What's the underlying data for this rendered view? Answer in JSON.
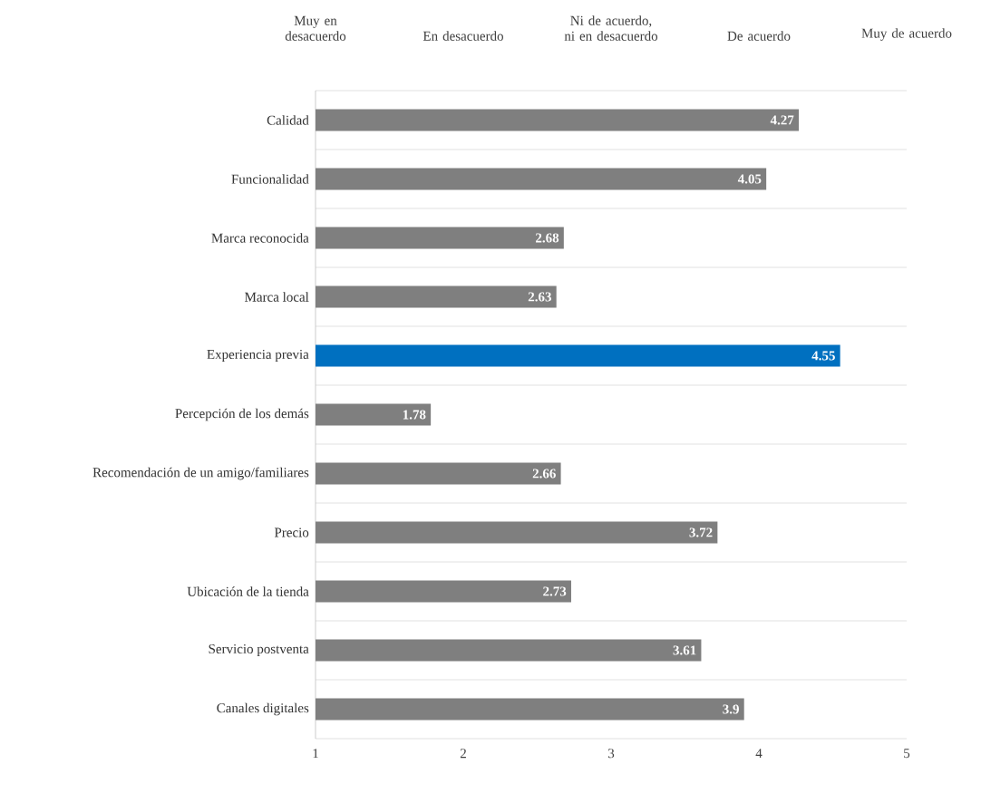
{
  "chart_data": {
    "type": "bar",
    "orientation": "horizontal",
    "categories": [
      "Calidad",
      "Funcionalidad",
      "Marca reconocida",
      "Marca local",
      "Experiencia previa",
      "Percepción de los demás",
      "Recomendación de un amigo/familiares",
      "Precio",
      "Ubicación de la tienda",
      "Servicio postventa",
      "Canales digitales"
    ],
    "values": [
      4.27,
      4.05,
      2.68,
      2.63,
      4.55,
      1.78,
      2.66,
      3.72,
      2.73,
      3.61,
      3.9
    ],
    "colors": [
      "#7f7f7f",
      "#7f7f7f",
      "#7f7f7f",
      "#7f7f7f",
      "#0070c0",
      "#7f7f7f",
      "#7f7f7f",
      "#7f7f7f",
      "#7f7f7f",
      "#7f7f7f",
      "#7f7f7f"
    ],
    "xlim": [
      1,
      5
    ],
    "xticks": [
      1,
      2,
      3,
      4,
      5
    ],
    "annotations": [
      "Muy en desacuerdo",
      "En desacuerdo",
      "Ni de acuerdo, ni en desacuerdo",
      "De acuerdo",
      "Muy de acuerdo"
    ],
    "grid": "y",
    "data_labels": true
  }
}
